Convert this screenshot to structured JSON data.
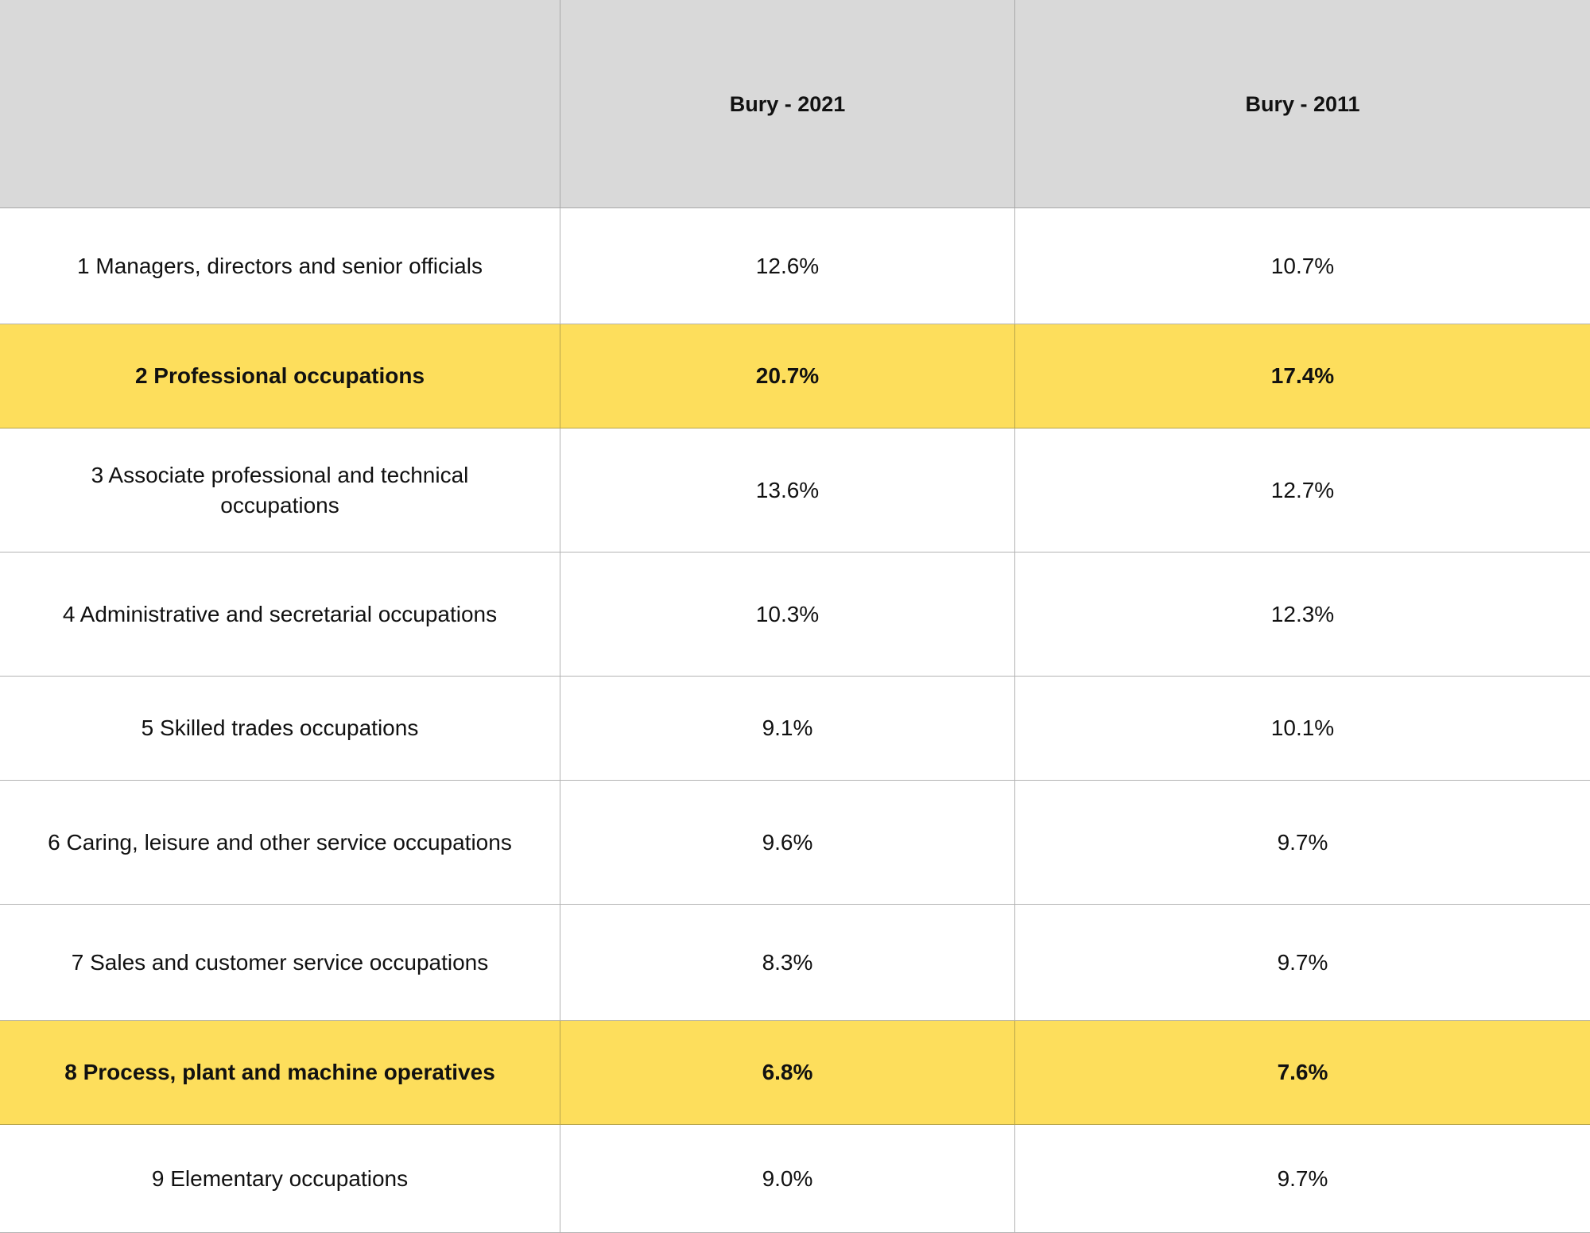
{
  "table": {
    "columns": [
      "",
      "Bury - 2021",
      "Bury - 2011"
    ],
    "rows": [
      {
        "label": "1 Managers, directors and senior officials",
        "v2021": "12.6%",
        "v2011": "10.7%",
        "highlight": false
      },
      {
        "label": "2 Professional occupations",
        "v2021": "20.7%",
        "v2011": "17.4%",
        "highlight": true
      },
      {
        "label": "3 Associate professional and technical occupations",
        "v2021": "13.6%",
        "v2011": "12.7%",
        "highlight": false
      },
      {
        "label": "4 Administrative and secretarial occupations",
        "v2021": "10.3%",
        "v2011": "12.3%",
        "highlight": false
      },
      {
        "label": "5 Skilled trades occupations",
        "v2021": "9.1%",
        "v2011": "10.1%",
        "highlight": false
      },
      {
        "label": "6 Caring, leisure and other service occupations",
        "v2021": "9.6%",
        "v2011": "9.7%",
        "highlight": false
      },
      {
        "label": "7 Sales and customer service occupations",
        "v2021": "8.3%",
        "v2011": "9.7%",
        "highlight": false
      },
      {
        "label": "8 Process, plant and machine operatives",
        "v2021": "6.8%",
        "v2011": "7.6%",
        "highlight": true
      },
      {
        "label": "9 Elementary occupations",
        "v2021": "9.0%",
        "v2011": "9.7%",
        "highlight": false
      }
    ],
    "highlight_color": "#fdde5c",
    "header_color": "#d9d9d9"
  }
}
